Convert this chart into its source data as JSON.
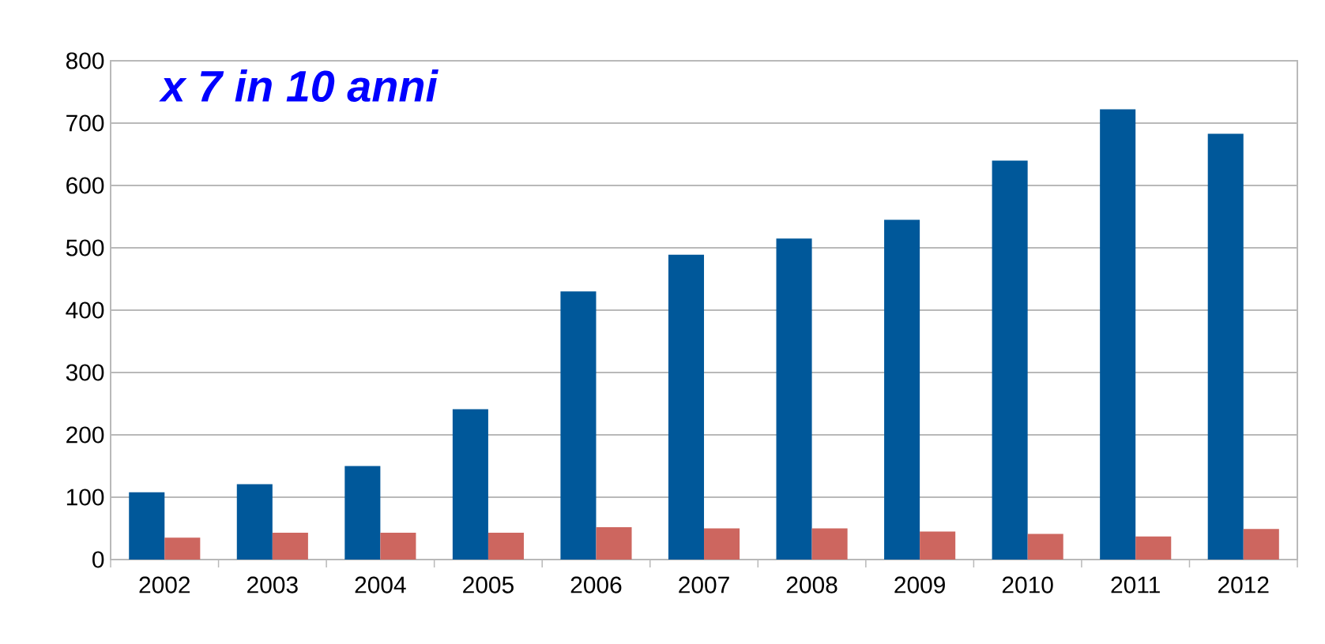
{
  "chart_data": {
    "type": "bar",
    "annotations": [
      "x 7 in 10 anni"
    ],
    "categories": [
      "2002",
      "2003",
      "2004",
      "2005",
      "2006",
      "2007",
      "2008",
      "2009",
      "2010",
      "2011",
      "2012"
    ],
    "series": [
      {
        "color": "#00589a",
        "values": [
          108,
          121,
          150,
          241,
          430,
          489,
          515,
          545,
          640,
          722,
          683
        ]
      },
      {
        "color": "#cd665f",
        "values": [
          35,
          43,
          43,
          43,
          52,
          50,
          50,
          45,
          41,
          37,
          49
        ]
      }
    ],
    "ylim": [
      0,
      800
    ],
    "yticks": [
      0,
      100,
      200,
      300,
      400,
      500,
      600,
      700,
      800
    ],
    "grid": "y"
  }
}
